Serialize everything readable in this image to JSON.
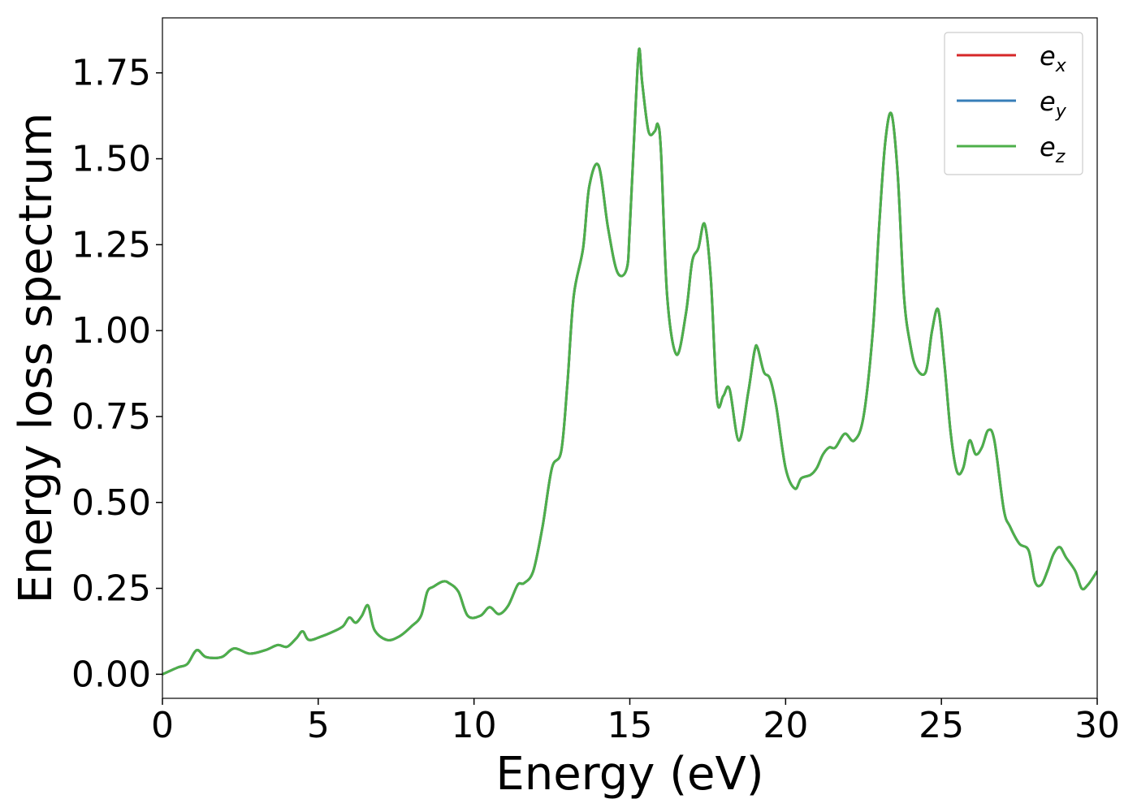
{
  "chart_data": {
    "type": "line",
    "title": "",
    "xlabel": "Energy (eV)",
    "ylabel": "Energy loss spectrum",
    "xlim": [
      0,
      30
    ],
    "ylim": [
      -0.07,
      1.91
    ],
    "xticks": [
      0,
      5,
      10,
      15,
      20,
      25,
      30
    ],
    "xtick_labels": [
      "0",
      "5",
      "10",
      "15",
      "20",
      "25",
      "30"
    ],
    "yticks": [
      0,
      0.25,
      0.5,
      0.75,
      1.0,
      1.25,
      1.5,
      1.75
    ],
    "ytick_labels": [
      "0.00",
      "0.25",
      "0.50",
      "0.75",
      "1.00",
      "1.25",
      "1.50",
      "1.75"
    ],
    "grid": false,
    "legend_position": "top-right",
    "x": [
      0,
      0.5,
      0.8,
      1.1,
      1.4,
      1.9,
      2.3,
      2.8,
      3.3,
      3.7,
      4.0,
      4.3,
      4.5,
      4.7,
      5.1,
      5.5,
      5.8,
      6.0,
      6.2,
      6.4,
      6.6,
      6.8,
      7.2,
      7.6,
      8.0,
      8.3,
      8.5,
      8.7,
      9.0,
      9.2,
      9.5,
      9.8,
      10.2,
      10.5,
      10.8,
      11.1,
      11.4,
      11.6,
      11.9,
      12.2,
      12.5,
      12.8,
      13.0,
      13.2,
      13.5,
      13.7,
      14.0,
      14.3,
      14.6,
      14.9,
      15.0,
      15.2,
      15.3,
      15.4,
      15.6,
      15.8,
      15.9,
      16.0,
      16.2,
      16.5,
      16.8,
      17.0,
      17.2,
      17.4,
      17.6,
      17.8,
      18.0,
      18.2,
      18.5,
      18.8,
      19.0,
      19.1,
      19.3,
      19.5,
      19.7,
      20.0,
      20.3,
      20.5,
      20.8,
      21.0,
      21.2,
      21.4,
      21.6,
      21.9,
      22.2,
      22.5,
      22.8,
      23.0,
      23.2,
      23.4,
      23.6,
      23.8,
      24.0,
      24.2,
      24.5,
      24.7,
      24.9,
      25.1,
      25.3,
      25.5,
      25.7,
      25.9,
      26.1,
      26.3,
      26.5,
      26.7,
      27.0,
      27.2,
      27.5,
      27.8,
      28.0,
      28.2,
      28.4,
      28.6,
      28.8,
      29.0,
      29.3,
      29.5,
      29.7,
      30.0
    ],
    "series": [
      {
        "name": "e_x",
        "label": "e",
        "subscript": "x",
        "color": "#d62728",
        "y": [
          0.0,
          0.02,
          0.03,
          0.07,
          0.05,
          0.05,
          0.075,
          0.06,
          0.07,
          0.085,
          0.08,
          0.105,
          0.125,
          0.1,
          0.11,
          0.125,
          0.14,
          0.165,
          0.15,
          0.17,
          0.2,
          0.13,
          0.1,
          0.11,
          0.14,
          0.17,
          0.24,
          0.255,
          0.27,
          0.265,
          0.24,
          0.17,
          0.17,
          0.195,
          0.175,
          0.2,
          0.26,
          0.265,
          0.3,
          0.43,
          0.6,
          0.65,
          0.85,
          1.1,
          1.24,
          1.42,
          1.48,
          1.3,
          1.17,
          1.18,
          1.3,
          1.68,
          1.82,
          1.72,
          1.58,
          1.58,
          1.6,
          1.52,
          1.1,
          0.93,
          1.05,
          1.2,
          1.24,
          1.31,
          1.15,
          0.8,
          0.81,
          0.83,
          0.68,
          0.82,
          0.94,
          0.95,
          0.88,
          0.86,
          0.78,
          0.6,
          0.54,
          0.57,
          0.58,
          0.6,
          0.64,
          0.66,
          0.66,
          0.7,
          0.68,
          0.75,
          1.0,
          1.3,
          1.55,
          1.63,
          1.45,
          1.1,
          0.96,
          0.89,
          0.88,
          1.0,
          1.06,
          0.9,
          0.7,
          0.59,
          0.6,
          0.68,
          0.64,
          0.66,
          0.71,
          0.68,
          0.48,
          0.43,
          0.38,
          0.36,
          0.27,
          0.26,
          0.3,
          0.35,
          0.37,
          0.34,
          0.3,
          0.25,
          0.26,
          0.3
        ]
      },
      {
        "name": "e_y",
        "label": "e",
        "subscript": "y",
        "color": "#377eb8",
        "y": [
          0.0,
          0.02,
          0.03,
          0.07,
          0.05,
          0.05,
          0.075,
          0.06,
          0.07,
          0.085,
          0.08,
          0.105,
          0.125,
          0.1,
          0.11,
          0.125,
          0.14,
          0.165,
          0.15,
          0.17,
          0.2,
          0.13,
          0.1,
          0.11,
          0.14,
          0.17,
          0.24,
          0.255,
          0.27,
          0.265,
          0.24,
          0.17,
          0.17,
          0.195,
          0.175,
          0.2,
          0.26,
          0.265,
          0.3,
          0.43,
          0.6,
          0.65,
          0.85,
          1.1,
          1.24,
          1.42,
          1.48,
          1.3,
          1.17,
          1.18,
          1.3,
          1.68,
          1.82,
          1.72,
          1.58,
          1.58,
          1.6,
          1.52,
          1.1,
          0.93,
          1.05,
          1.2,
          1.24,
          1.31,
          1.15,
          0.8,
          0.81,
          0.83,
          0.68,
          0.82,
          0.94,
          0.95,
          0.88,
          0.86,
          0.78,
          0.6,
          0.54,
          0.57,
          0.58,
          0.6,
          0.64,
          0.66,
          0.66,
          0.7,
          0.68,
          0.75,
          1.0,
          1.3,
          1.55,
          1.63,
          1.45,
          1.1,
          0.96,
          0.89,
          0.88,
          1.0,
          1.06,
          0.9,
          0.7,
          0.59,
          0.6,
          0.68,
          0.64,
          0.66,
          0.71,
          0.68,
          0.48,
          0.43,
          0.38,
          0.36,
          0.27,
          0.26,
          0.3,
          0.35,
          0.37,
          0.34,
          0.3,
          0.25,
          0.26,
          0.3
        ]
      },
      {
        "name": "e_z",
        "label": "e",
        "subscript": "z",
        "color": "#4daf4a",
        "y": [
          0.0,
          0.02,
          0.03,
          0.07,
          0.05,
          0.05,
          0.075,
          0.06,
          0.07,
          0.085,
          0.08,
          0.105,
          0.125,
          0.1,
          0.11,
          0.125,
          0.14,
          0.165,
          0.15,
          0.17,
          0.2,
          0.13,
          0.1,
          0.11,
          0.14,
          0.17,
          0.24,
          0.255,
          0.27,
          0.265,
          0.24,
          0.17,
          0.17,
          0.195,
          0.175,
          0.2,
          0.26,
          0.265,
          0.3,
          0.43,
          0.6,
          0.65,
          0.85,
          1.1,
          1.24,
          1.42,
          1.48,
          1.3,
          1.17,
          1.18,
          1.3,
          1.68,
          1.82,
          1.72,
          1.58,
          1.58,
          1.6,
          1.52,
          1.1,
          0.93,
          1.05,
          1.2,
          1.24,
          1.31,
          1.15,
          0.8,
          0.81,
          0.83,
          0.68,
          0.82,
          0.94,
          0.95,
          0.88,
          0.86,
          0.78,
          0.6,
          0.54,
          0.57,
          0.58,
          0.6,
          0.64,
          0.66,
          0.66,
          0.7,
          0.68,
          0.75,
          1.0,
          1.3,
          1.55,
          1.63,
          1.45,
          1.1,
          0.96,
          0.89,
          0.88,
          1.0,
          1.06,
          0.9,
          0.7,
          0.59,
          0.6,
          0.68,
          0.64,
          0.66,
          0.71,
          0.68,
          0.48,
          0.43,
          0.38,
          0.36,
          0.27,
          0.26,
          0.3,
          0.35,
          0.37,
          0.34,
          0.3,
          0.25,
          0.26,
          0.3
        ]
      }
    ]
  }
}
